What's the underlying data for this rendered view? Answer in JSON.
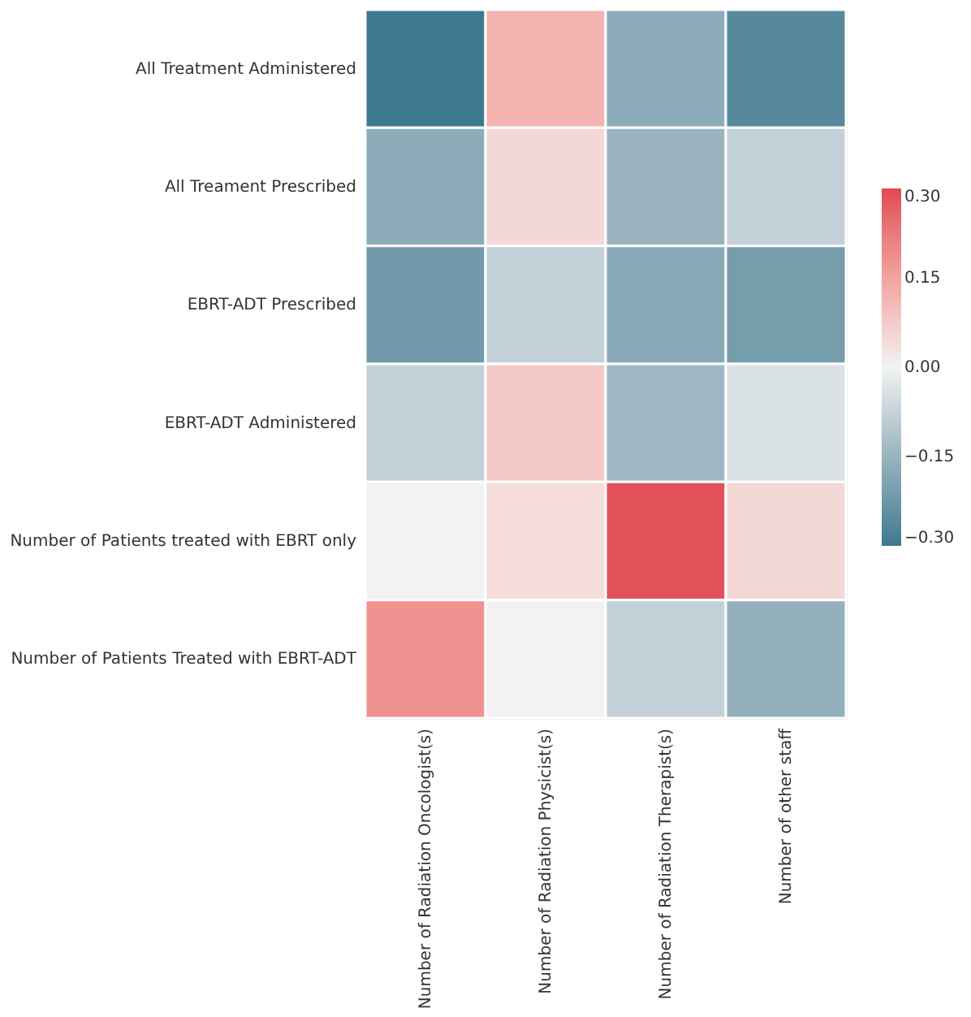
{
  "chart_data": {
    "type": "heatmap",
    "categories": [
      "Number of Radiation Oncologist(s)",
      "Number of Radiation Physicist(s)",
      "Number of Radiation Therapist(s)",
      "Number of other staff"
    ],
    "y_categories": [
      "All Treatment Administered",
      "All Treament Prescribed",
      "EBRT-ADT Prescribed",
      "EBRT-ADT Administered",
      "Number of Patients treated with EBRT only",
      "Number of Patients Treated with EBRT-ADT"
    ],
    "cells": [
      [
        -0.3,
        0.12,
        -0.17,
        -0.26
      ],
      [
        -0.17,
        0.05,
        -0.15,
        -0.08
      ],
      [
        -0.22,
        -0.08,
        -0.18,
        -0.21
      ],
      [
        -0.08,
        0.08,
        -0.14,
        -0.04
      ],
      [
        0.0,
        0.04,
        0.29,
        0.05
      ],
      [
        0.18,
        0.0,
        -0.08,
        -0.16
      ]
    ],
    "clim": [
      -0.3,
      0.3
    ],
    "cticks": [
      {
        "value": 0.3,
        "label": "0.30"
      },
      {
        "value": 0.15,
        "label": "0.15"
      },
      {
        "value": 0,
        "label": "0.00"
      },
      {
        "value": -0.15,
        "label": "−0.15"
      },
      {
        "value": -0.3,
        "label": "−0.30"
      }
    ],
    "colors": [
      "#3d7a8f",
      "#f2f2f2",
      "#e04a55"
    ]
  }
}
